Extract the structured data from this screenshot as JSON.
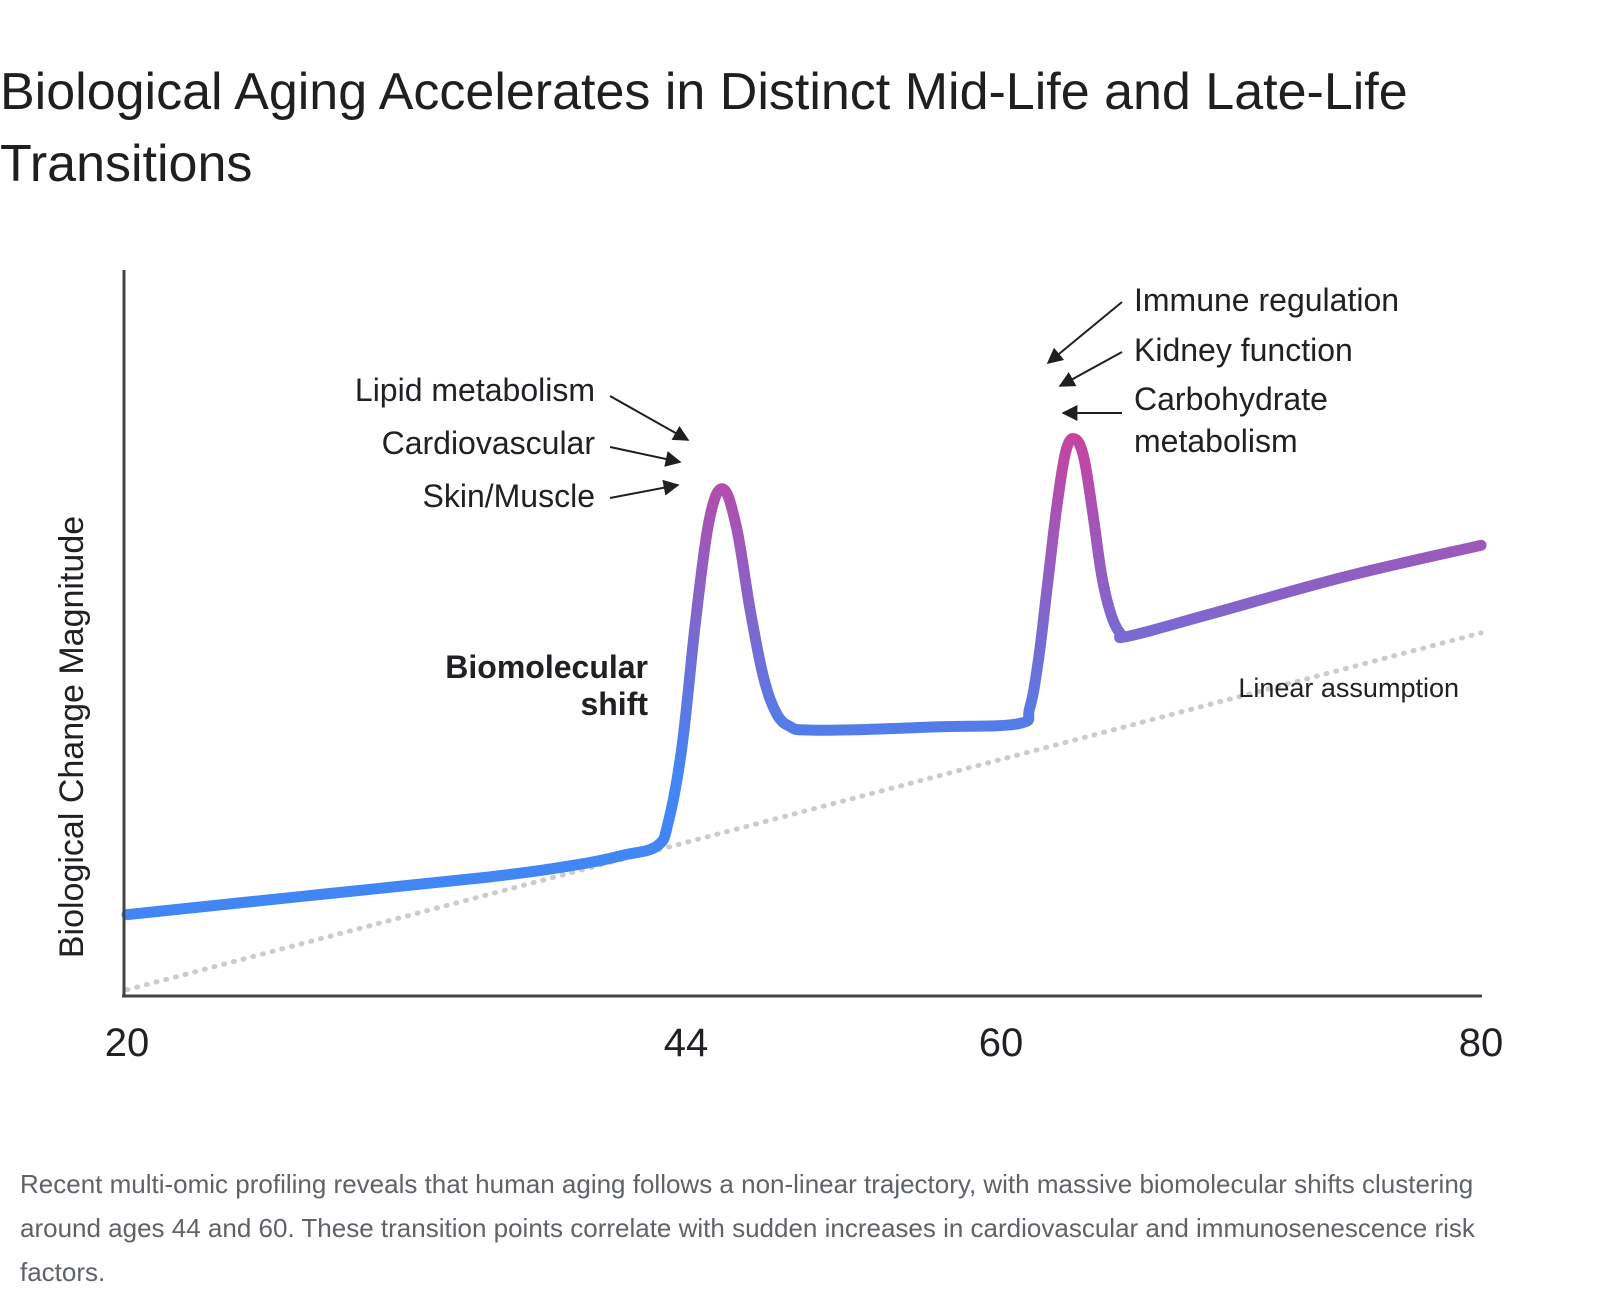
{
  "title": "Biological Aging Accelerates in Distinct Mid-Life and Late-Life Transitions",
  "caption": "Recent multi-omic profiling reveals that human aging follows a non-linear trajectory, with massive biomolecular shifts clustering around ages 44 and 60. These transition points correlate with sudden increases in cardiovascular and immunosenescence risk factors.",
  "colors": {
    "start": "#4285f4",
    "end": "#d93a94",
    "linear": "#cccccc",
    "axis": "#444444"
  },
  "chart_data": {
    "type": "line",
    "ylabel": "Biological Change Magnitude",
    "xlabel": "",
    "x_ticks": [
      "20",
      "44",
      "60",
      "80"
    ],
    "xlim": [
      20,
      80
    ],
    "ylim": [
      0,
      100
    ],
    "series": [
      {
        "name": "",
        "x": [
          20,
          28,
          36,
          40,
          42,
          43.5,
          44,
          44.6,
          45.2,
          45.8,
          46.4,
          47,
          47.6,
          48.2,
          48.8,
          49.4,
          50,
          52,
          56,
          59.5,
          60,
          60.4,
          60.8,
          61.2,
          61.6,
          62,
          62.4,
          62.8,
          63.2,
          63.6,
          64,
          64.4,
          68,
          74,
          80
        ],
        "y": [
          13,
          16,
          19,
          21,
          22.5,
          24,
          28,
          40,
          60,
          76,
          81,
          75,
          62,
          51,
          45,
          43,
          42.5,
          42.5,
          43,
          43.5,
          46,
          54,
          66,
          78,
          87,
          89,
          86,
          77,
          67,
          61,
          58,
          57.5,
          61,
          67,
          72
        ]
      },
      {
        "name": "Linear assumption",
        "x": [
          20,
          80
        ],
        "y": [
          1,
          58
        ]
      }
    ],
    "annotations": {
      "peak44": [
        "Lipid metabolism",
        "Cardiovascular",
        "Skin/Muscle"
      ],
      "peak60": [
        "Immune regulation",
        "Kidney function",
        "Carbohydrate",
        "metabolism"
      ],
      "shift": [
        "Biomolecular",
        "shift"
      ],
      "linear": "Linear assumption"
    }
  }
}
